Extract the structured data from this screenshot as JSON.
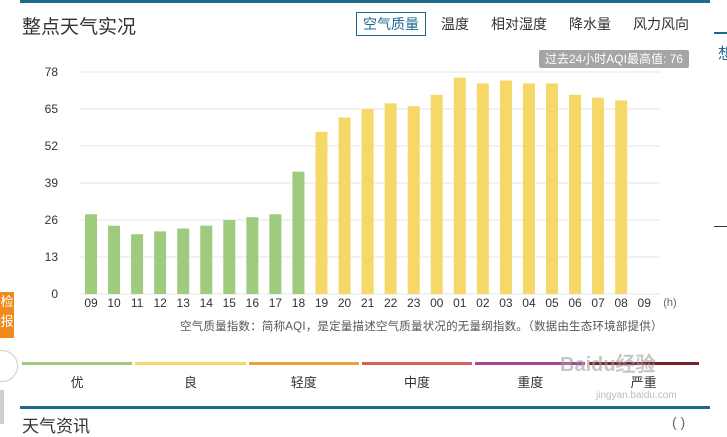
{
  "header": {
    "title": "整点天气实况"
  },
  "tabs": [
    {
      "label": "空气质量",
      "active": true
    },
    {
      "label": "温度",
      "active": false
    },
    {
      "label": "相对湿度",
      "active": false
    },
    {
      "label": "降水量",
      "active": false
    },
    {
      "label": "风力风向",
      "active": false
    }
  ],
  "max_badge": "过去24小时AQI最高值: 76",
  "note": "空气质量指数：简称AQI，是定量描述空气质量状况的无量纲指数。（数据由生态环境部提供）",
  "chart_data": {
    "type": "bar",
    "categories": [
      "09",
      "10",
      "11",
      "12",
      "13",
      "14",
      "15",
      "16",
      "17",
      "18",
      "19",
      "20",
      "21",
      "22",
      "23",
      "00",
      "01",
      "02",
      "03",
      "04",
      "05",
      "06",
      "07",
      "08",
      "09"
    ],
    "values": [
      28,
      24,
      21,
      22,
      23,
      24,
      26,
      27,
      28,
      43,
      57,
      62,
      65,
      67,
      66,
      70,
      76,
      74,
      75,
      74,
      74,
      70,
      69,
      68,
      null
    ],
    "xunit": "(h)",
    "yticks": [
      0,
      13,
      26,
      39,
      52,
      65,
      78
    ],
    "ylim": [
      0,
      78
    ],
    "grid": true,
    "colors": {
      "good": "#9fcb7f",
      "moderate": "#f5d867"
    }
  },
  "legend": [
    {
      "label": "优",
      "color": "#9fcb7f"
    },
    {
      "label": "良",
      "color": "#f5d867"
    },
    {
      "label": "轻度",
      "color": "#e9a23b"
    },
    {
      "label": "中度",
      "color": "#d95f5f"
    },
    {
      "label": "重度",
      "color": "#a8478f"
    },
    {
      "label": "严重",
      "color": "#7a1f2b"
    }
  ],
  "bottom": {
    "title": "天气资讯",
    "close_glyph": "( )"
  },
  "sidebar_left": {
    "tab_text": "检报"
  },
  "sidebar_right": {
    "glyph": "想"
  },
  "watermark": {
    "brand": "Baidu经验",
    "url": "jingyan.baidu.com"
  }
}
